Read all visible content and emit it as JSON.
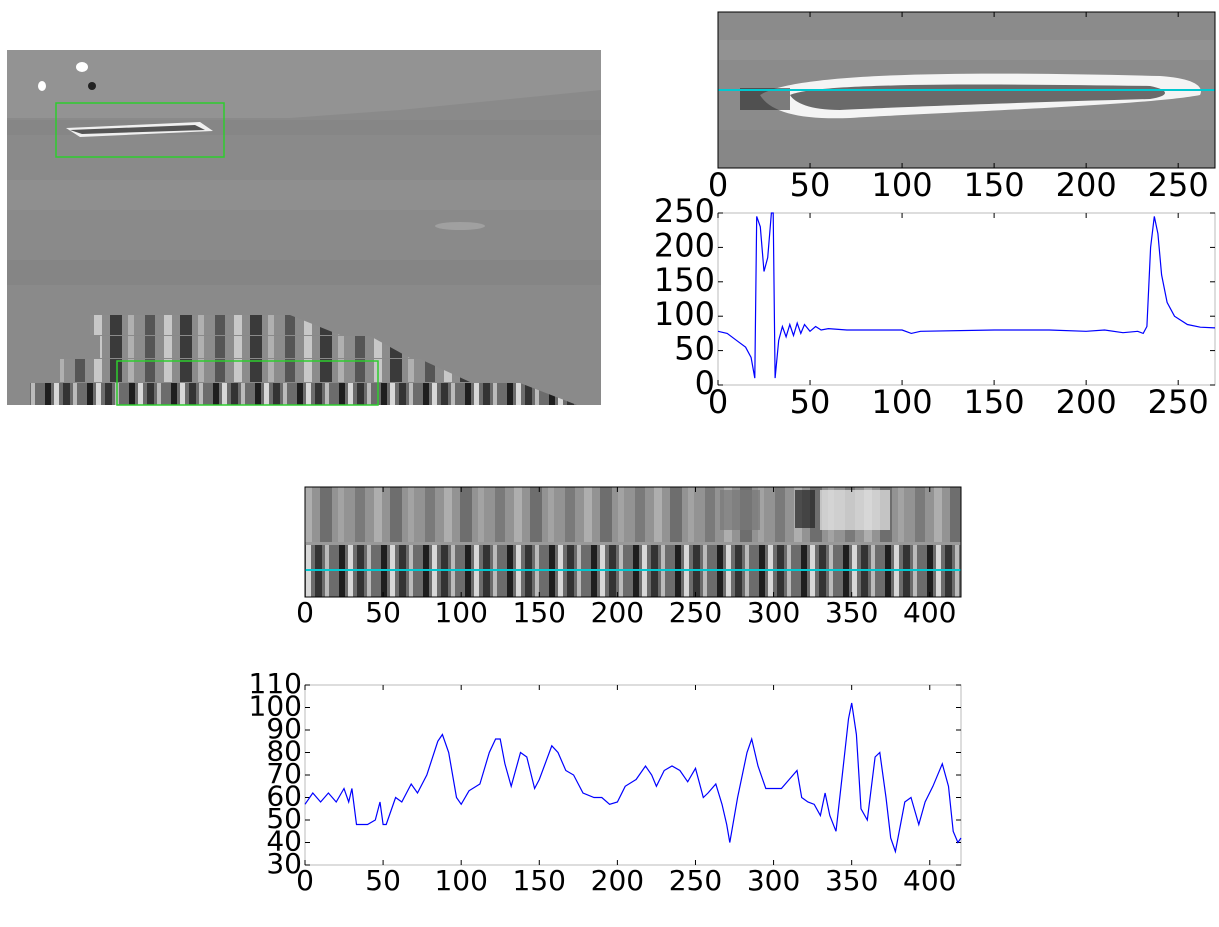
{
  "chart_data": [
    {
      "type": "image",
      "xlim": [
        0,
        270
      ],
      "xticks": [
        0,
        50,
        100,
        150,
        200,
        250
      ]
    },
    {
      "type": "line",
      "color": "#0000ff",
      "xlim": [
        0,
        270
      ],
      "xticks": [
        0,
        50,
        100,
        150,
        200,
        250
      ],
      "ylim": [
        0,
        250
      ],
      "yticks": [
        0,
        50,
        100,
        150,
        200,
        250
      ],
      "x": [
        0,
        5,
        10,
        15,
        18,
        20,
        21,
        23,
        25,
        27,
        29,
        30,
        31,
        33,
        35,
        37,
        39,
        41,
        43,
        45,
        47,
        50,
        53,
        56,
        60,
        70,
        100,
        105,
        110,
        150,
        180,
        200,
        210,
        220,
        228,
        231,
        233,
        235,
        237,
        239,
        241,
        244,
        248,
        255,
        262,
        270
      ],
      "values": [
        78,
        75,
        65,
        55,
        40,
        10,
        245,
        230,
        165,
        185,
        250,
        250,
        10,
        65,
        85,
        70,
        88,
        72,
        90,
        75,
        88,
        78,
        85,
        80,
        82,
        80,
        80,
        75,
        78,
        80,
        80,
        78,
        80,
        76,
        78,
        75,
        85,
        200,
        245,
        220,
        160,
        120,
        100,
        88,
        84,
        83
      ]
    },
    {
      "type": "image",
      "xlim": [
        0,
        420
      ],
      "xticks": [
        0,
        50,
        100,
        150,
        200,
        250,
        300,
        350,
        400
      ]
    },
    {
      "type": "line",
      "color": "#0000ff",
      "xlim": [
        0,
        420
      ],
      "xticks": [
        0,
        50,
        100,
        150,
        200,
        250,
        300,
        350,
        400
      ],
      "ylim": [
        30,
        110
      ],
      "yticks": [
        30,
        40,
        50,
        60,
        70,
        80,
        90,
        100,
        110
      ],
      "x": [
        0,
        5,
        10,
        15,
        20,
        25,
        28,
        30,
        33,
        40,
        45,
        48,
        50,
        52,
        58,
        62,
        68,
        72,
        78,
        85,
        88,
        92,
        97,
        100,
        105,
        112,
        118,
        122,
        125,
        128,
        132,
        138,
        142,
        147,
        150,
        158,
        162,
        167,
        172,
        178,
        185,
        190,
        195,
        200,
        205,
        212,
        218,
        222,
        225,
        230,
        235,
        240,
        245,
        250,
        255,
        258,
        263,
        267,
        270,
        272,
        277,
        283,
        286,
        290,
        295,
        300,
        305,
        310,
        315,
        318,
        322,
        326,
        330,
        333,
        336,
        340,
        344,
        348,
        350,
        353,
        356,
        360,
        365,
        368,
        372,
        375,
        378,
        384,
        388,
        393,
        397,
        402,
        408,
        412,
        415,
        418,
        420
      ],
      "values": [
        57,
        62,
        58,
        62,
        58,
        64,
        58,
        64,
        48,
        48,
        50,
        58,
        48,
        48,
        60,
        58,
        66,
        62,
        70,
        85,
        88,
        80,
        60,
        57,
        63,
        66,
        80,
        86,
        86,
        75,
        65,
        80,
        78,
        64,
        68,
        83,
        80,
        72,
        70,
        62,
        60,
        60,
        57,
        58,
        65,
        68,
        74,
        70,
        65,
        72,
        74,
        72,
        67,
        73,
        60,
        62,
        66,
        57,
        48,
        40,
        60,
        80,
        86,
        74,
        64,
        64,
        64,
        68,
        72,
        60,
        58,
        57,
        52,
        62,
        52,
        45,
        70,
        95,
        102,
        88,
        55,
        50,
        78,
        80,
        60,
        42,
        36,
        58,
        60,
        48,
        58,
        65,
        75,
        65,
        45,
        40,
        42
      ]
    }
  ]
}
